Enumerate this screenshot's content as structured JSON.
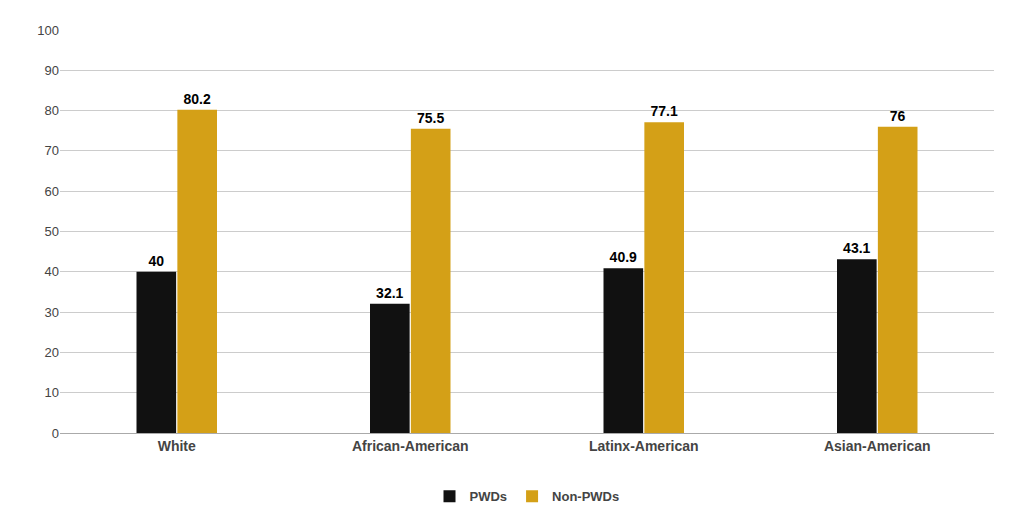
{
  "chart_data": {
    "type": "bar",
    "categories": [
      "White",
      "African-American",
      "Latinx-American",
      "Asian-American"
    ],
    "series": [
      {
        "name": "PWDs",
        "color": "#111111",
        "values": [
          40,
          32.1,
          40.9,
          43.1
        ]
      },
      {
        "name": "Non-PWDs",
        "color": "#D4A017",
        "values": [
          80.2,
          75.5,
          77.1,
          76
        ]
      }
    ],
    "ylim": [
      0,
      100
    ],
    "yticks": [
      0,
      10,
      20,
      30,
      40,
      50,
      60,
      70,
      80,
      90,
      100
    ],
    "grid": true,
    "data_labels": true,
    "legend": "bottom"
  }
}
